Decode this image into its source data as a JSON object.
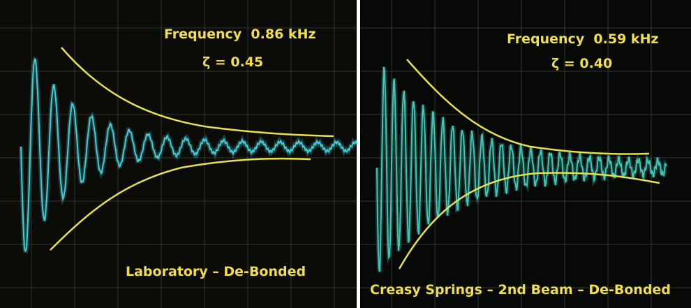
{
  "panels": [
    {
      "frequency": "Frequency  0.86 kHz",
      "damping": "ζ = 0.45",
      "caption": "Laboratory – De-Bonded"
    },
    {
      "frequency": "Frequency  0.59 kHz",
      "damping": "ζ = 0.40",
      "caption": "Creasy Springs – 2nd Beam – De-Bonded"
    }
  ]
}
